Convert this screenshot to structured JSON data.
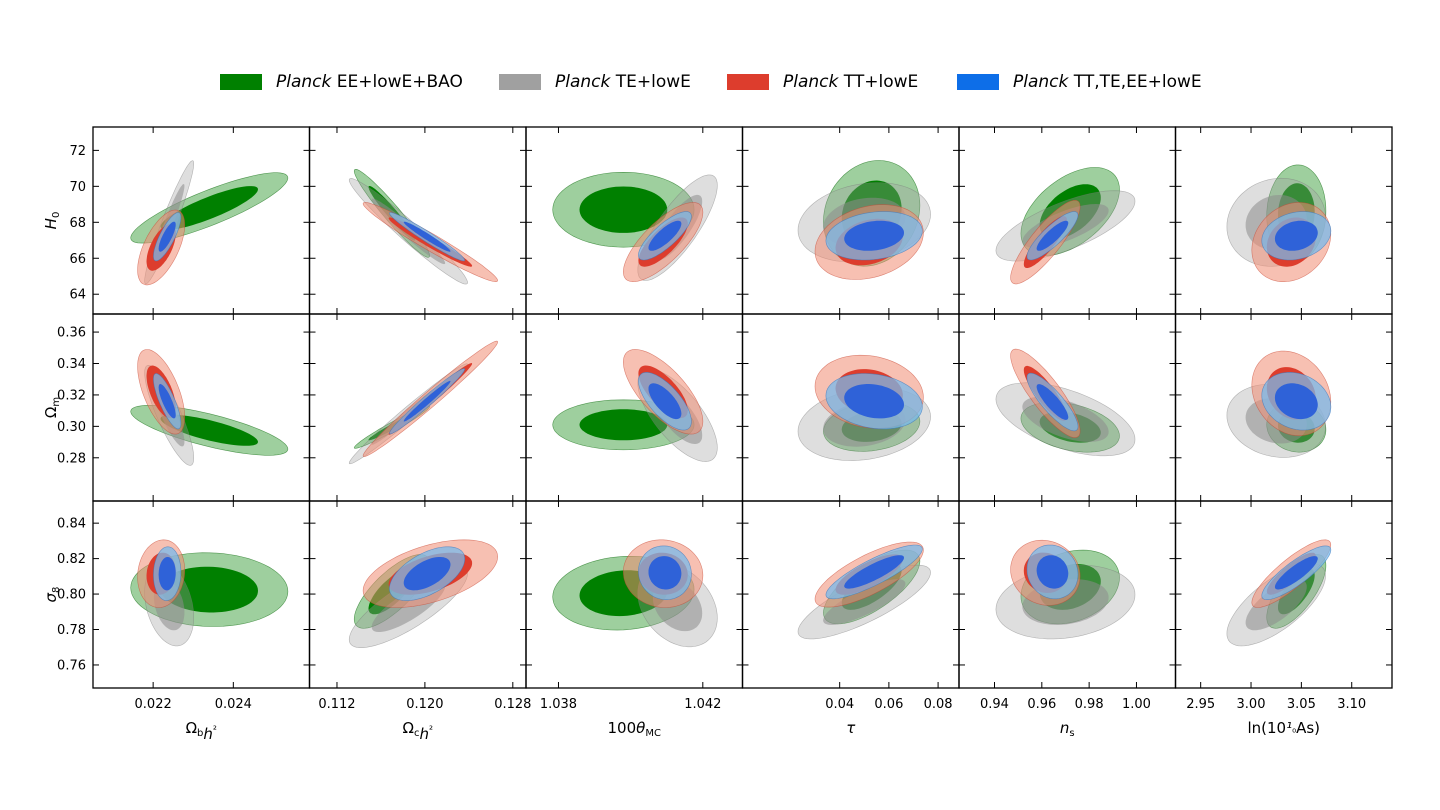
{
  "legend": [
    {
      "name_italic": "Planck",
      "name_rest": " EE+lowE+BAO",
      "color": "#008000"
    },
    {
      "name_italic": "Planck",
      "name_rest": " TE+lowE",
      "color": "#a0a0a0"
    },
    {
      "name_italic": "Planck",
      "name_rest": " TT+lowE",
      "color": "#dd3d2d"
    },
    {
      "name_italic": "Planck",
      "name_rest": " TT,TE,EE+lowE",
      "color": "#0d6ee8"
    }
  ],
  "chart_data": {
    "type": "contour",
    "grid": false,
    "legend_placement": "top-center",
    "series": [
      {
        "name": "Planck EE+lowE+BAO",
        "color": "#008000"
      },
      {
        "name": "Planck TE+lowE",
        "color": "#a0a0a0"
      },
      {
        "name": "Planck TT+lowE",
        "color": "#dd3d2d"
      },
      {
        "name": "Planck TT,TE,EE+lowE",
        "color": "#0d6ee8"
      }
    ],
    "columns": [
      {
        "key": "omegabh2",
        "label": "Ωbh²",
        "range": [
          0.0205,
          0.0259
        ],
        "ticks": [
          0.022,
          0.024
        ],
        "tick_labels": [
          "0.022",
          "0.024"
        ]
      },
      {
        "key": "omegach2",
        "label": "Ωch²",
        "range": [
          0.1095,
          0.1292
        ],
        "ticks": [
          0.112,
          0.12,
          0.128
        ],
        "tick_labels": [
          "0.112",
          "0.120",
          "0.128"
        ]
      },
      {
        "key": "theta",
        "label": "100θMC",
        "range": [
          1.0371,
          1.0431
        ],
        "ticks": [
          1.038,
          1.042
        ],
        "tick_labels": [
          "1.038",
          "1.042"
        ]
      },
      {
        "key": "tau",
        "label": "τ",
        "range": [
          0.0005,
          0.0885
        ],
        "ticks": [
          0.04,
          0.06,
          0.08
        ],
        "tick_labels": [
          "0.04",
          "0.06",
          "0.08"
        ]
      },
      {
        "key": "ns",
        "label": "ns",
        "range": [
          0.925,
          1.0165
        ],
        "ticks": [
          0.94,
          0.96,
          0.98,
          1.0
        ],
        "tick_labels": [
          "0.94",
          "0.96",
          "0.98",
          "1.00"
        ]
      },
      {
        "key": "logA",
        "label": "ln(10¹⁰As)",
        "range": [
          2.925,
          3.14
        ],
        "ticks": [
          2.95,
          3.0,
          3.05,
          3.1
        ],
        "tick_labels": [
          "2.95",
          "3.00",
          "3.05",
          "3.10"
        ]
      }
    ],
    "rows": [
      {
        "key": "H0",
        "label": "H0",
        "range": [
          62.9,
          73.3
        ],
        "ticks": [
          64,
          66,
          68,
          70,
          72
        ],
        "tick_labels": [
          "64",
          "66",
          "68",
          "70",
          "72"
        ]
      },
      {
        "key": "omegam",
        "label": "Ωm",
        "range": [
          0.2525,
          0.3715
        ],
        "ticks": [
          0.28,
          0.3,
          0.32,
          0.34,
          0.36
        ],
        "tick_labels": [
          "0.28",
          "0.30",
          "0.32",
          "0.34",
          "0.36"
        ]
      },
      {
        "key": "sigma8",
        "label": "σ8",
        "range": [
          0.747,
          0.8525
        ],
        "ticks": [
          0.76,
          0.78,
          0.8,
          0.82,
          0.84
        ],
        "tick_labels": [
          "0.76",
          "0.78",
          "0.80",
          "0.82",
          "0.84"
        ]
      }
    ],
    "contours_note": "Each series: mean (mx,my), 68% semi-axes (sx,sy) and correlation r per panel; outer = 95% region",
    "panels": [
      [
        [
          [
            0.0234,
            68.8,
            0.0008,
            0.8,
            0.85
          ],
          [
            0.0224,
            68.0,
            0.00025,
            1.4,
            0.95
          ],
          [
            0.0222,
            66.6,
            0.00024,
            0.85,
            0.6
          ],
          [
            0.02235,
            67.2,
            0.00014,
            0.55,
            0.8
          ]
        ],
        [
          [
            0.117,
            68.5,
            0.0014,
            1.0,
            -0.96
          ],
          [
            0.1185,
            67.5,
            0.0022,
            1.2,
            -0.97
          ],
          [
            0.1205,
            66.9,
            0.0025,
            0.9,
            -0.97
          ],
          [
            0.1202,
            67.2,
            0.0014,
            0.55,
            -0.97
          ]
        ],
        [
          [
            1.0398,
            68.7,
            0.0008,
            0.85,
            0.0
          ],
          [
            1.0413,
            67.7,
            0.00045,
            1.2,
            0.8
          ],
          [
            1.0409,
            66.9,
            0.00045,
            0.9,
            0.75
          ],
          [
            1.04095,
            67.25,
            0.0003,
            0.55,
            0.8
          ]
        ],
        [
          [
            0.053,
            68.5,
            0.008,
            1.2,
            0.15
          ],
          [
            0.05,
            68.0,
            0.011,
            0.9,
            0.2
          ],
          [
            0.052,
            66.9,
            0.009,
            0.85,
            0.25
          ],
          [
            0.054,
            67.25,
            0.008,
            0.55,
            0.2
          ]
        ],
        [
          [
            0.972,
            68.6,
            0.0085,
            1.0,
            0.5
          ],
          [
            0.97,
            67.8,
            0.012,
            0.8,
            0.7
          ],
          [
            0.9615,
            66.9,
            0.006,
            0.95,
            0.85
          ],
          [
            0.9645,
            67.25,
            0.0044,
            0.55,
            0.85
          ]
        ],
        [
          [
            3.045,
            68.5,
            0.012,
            1.1,
            0.05
          ],
          [
            3.025,
            68.0,
            0.02,
            1.0,
            0.1
          ],
          [
            3.04,
            66.9,
            0.016,
            0.9,
            0.2
          ],
          [
            3.045,
            67.25,
            0.014,
            0.55,
            0.2
          ]
        ]
      ],
      [
        [
          [
            0.0234,
            0.2975,
            0.0008,
            0.0065,
            -0.75
          ],
          [
            0.0224,
            0.307,
            0.00025,
            0.013,
            -0.85
          ],
          [
            0.0222,
            0.322,
            0.00024,
            0.011,
            -0.6
          ],
          [
            0.02235,
            0.316,
            0.00014,
            0.0072,
            -0.8
          ]
        ],
        [
          [
            0.117,
            0.2995,
            0.0014,
            0.0055,
            0.97
          ],
          [
            0.1185,
            0.308,
            0.0022,
            0.013,
            0.985
          ],
          [
            0.1205,
            0.3175,
            0.0025,
            0.015,
            0.985
          ],
          [
            0.1202,
            0.316,
            0.0014,
            0.0085,
            0.98
          ]
        ],
        [
          [
            1.0398,
            0.301,
            0.0008,
            0.0065,
            0.0
          ],
          [
            1.0413,
            0.307,
            0.00045,
            0.012,
            -0.7
          ],
          [
            1.0409,
            0.322,
            0.00045,
            0.011,
            -0.7
          ],
          [
            1.04095,
            0.316,
            0.0003,
            0.0075,
            -0.7
          ]
        ],
        [
          [
            0.053,
            0.3,
            0.008,
            0.0065,
            0.2
          ],
          [
            0.05,
            0.3015,
            0.011,
            0.0095,
            0.2
          ],
          [
            0.052,
            0.322,
            0.009,
            0.0095,
            -0.15
          ],
          [
            0.054,
            0.316,
            0.008,
            0.0072,
            -0.2
          ]
        ],
        [
          [
            0.972,
            0.2995,
            0.0085,
            0.0065,
            -0.35
          ],
          [
            0.97,
            0.3045,
            0.012,
            0.0095,
            -0.55
          ],
          [
            0.9615,
            0.321,
            0.006,
            0.0115,
            -0.85
          ],
          [
            0.9645,
            0.3155,
            0.0044,
            0.0075,
            -0.85
          ]
        ],
        [
          [
            3.045,
            0.2995,
            0.012,
            0.0065,
            -0.1
          ],
          [
            3.025,
            0.3035,
            0.02,
            0.0095,
            -0.15
          ],
          [
            3.04,
            0.321,
            0.016,
            0.011,
            -0.2
          ],
          [
            3.045,
            0.316,
            0.014,
            0.0075,
            -0.2
          ]
        ]
      ],
      [
        [
          [
            0.0234,
            0.8025,
            0.0008,
            0.0085,
            -0.05
          ],
          [
            0.0224,
            0.794,
            0.00025,
            0.0095,
            -0.3
          ],
          [
            0.0222,
            0.8115,
            0.00024,
            0.0078,
            0.1
          ],
          [
            0.02235,
            0.8115,
            0.00014,
            0.0062,
            0.05
          ]
        ],
        [
          [
            0.117,
            0.8015,
            0.0014,
            0.0085,
            0.75
          ],
          [
            0.1185,
            0.793,
            0.0022,
            0.0095,
            0.8
          ],
          [
            0.1205,
            0.8115,
            0.0025,
            0.0078,
            0.5
          ],
          [
            0.1202,
            0.8115,
            0.0014,
            0.0062,
            0.55
          ]
        ],
        [
          [
            1.0398,
            0.8005,
            0.0008,
            0.0085,
            0.1
          ],
          [
            1.0413,
            0.7935,
            0.00045,
            0.0095,
            -0.3
          ],
          [
            1.0409,
            0.8115,
            0.00045,
            0.0078,
            -0.05
          ],
          [
            1.04095,
            0.812,
            0.0003,
            0.0062,
            -0.05
          ]
        ],
        [
          [
            0.053,
            0.804,
            0.008,
            0.0085,
            0.7
          ],
          [
            0.05,
            0.7955,
            0.011,
            0.0085,
            0.8
          ],
          [
            0.052,
            0.811,
            0.009,
            0.0075,
            0.75
          ],
          [
            0.054,
            0.8125,
            0.008,
            0.0062,
            0.85
          ]
        ],
        [
          [
            0.972,
            0.804,
            0.0085,
            0.0085,
            0.25
          ],
          [
            0.97,
            0.7955,
            0.012,
            0.0085,
            0.2
          ],
          [
            0.9615,
            0.812,
            0.006,
            0.0075,
            -0.1
          ],
          [
            0.9645,
            0.8125,
            0.0044,
            0.0062,
            -0.1
          ]
        ],
        [
          [
            3.045,
            0.8015,
            0.012,
            0.0085,
            0.7
          ],
          [
            3.025,
            0.794,
            0.02,
            0.0095,
            0.7
          ],
          [
            3.04,
            0.8115,
            0.016,
            0.0078,
            0.85
          ],
          [
            3.045,
            0.812,
            0.014,
            0.0062,
            0.85
          ]
        ]
      ]
    ]
  }
}
